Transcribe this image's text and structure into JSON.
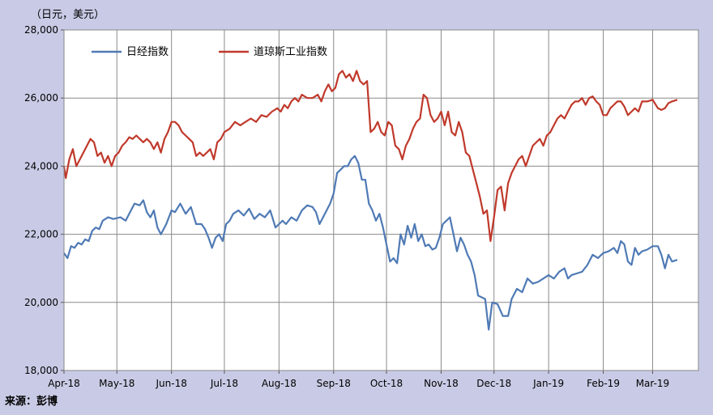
{
  "chart_data": {
    "type": "line",
    "unit_label": "（日元，美元）",
    "source": "来源：彭博",
    "ylim": [
      18000,
      28000
    ],
    "yticks": [
      18000,
      20000,
      22000,
      24000,
      26000,
      28000
    ],
    "ytick_labels": [
      "18,000",
      "20,000",
      "22,000",
      "24,000",
      "26,000",
      "28,000"
    ],
    "xlim": [
      0,
      360
    ],
    "months": [
      "Apr-18",
      "May-18",
      "Jun-18",
      "Jul-18",
      "Aug-18",
      "Sep-18",
      "Oct-18",
      "Nov-18",
      "Dec-18",
      "Jan-19",
      "Feb-19",
      "Mar-19"
    ],
    "month_start_day": [
      0,
      30,
      61,
      91,
      122,
      153,
      183,
      214,
      244,
      275,
      306,
      334
    ],
    "grid": true,
    "legend_position": "top-left",
    "colors": {
      "nikkei": "#4f7ab5",
      "dow": "#c0392b"
    },
    "series": [
      {
        "name": "日经指数",
        "color": "#4f7ab5",
        "points": [
          [
            0,
            21450
          ],
          [
            2,
            21300
          ],
          [
            4,
            21650
          ],
          [
            6,
            21600
          ],
          [
            8,
            21750
          ],
          [
            10,
            21700
          ],
          [
            12,
            21850
          ],
          [
            14,
            21800
          ],
          [
            16,
            22100
          ],
          [
            18,
            22200
          ],
          [
            20,
            22150
          ],
          [
            22,
            22400
          ],
          [
            25,
            22500
          ],
          [
            28,
            22450
          ],
          [
            32,
            22500
          ],
          [
            35,
            22400
          ],
          [
            37,
            22600
          ],
          [
            40,
            22900
          ],
          [
            43,
            22850
          ],
          [
            45,
            23000
          ],
          [
            47,
            22650
          ],
          [
            49,
            22500
          ],
          [
            51,
            22700
          ],
          [
            53,
            22200
          ],
          [
            55,
            22000
          ],
          [
            58,
            22300
          ],
          [
            61,
            22700
          ],
          [
            63,
            22650
          ],
          [
            66,
            22900
          ],
          [
            69,
            22600
          ],
          [
            72,
            22800
          ],
          [
            75,
            22300
          ],
          [
            78,
            22300
          ],
          [
            80,
            22150
          ],
          [
            82,
            21900
          ],
          [
            84,
            21600
          ],
          [
            86,
            21900
          ],
          [
            88,
            22000
          ],
          [
            90,
            21800
          ],
          [
            92,
            22300
          ],
          [
            94,
            22400
          ],
          [
            96,
            22600
          ],
          [
            99,
            22700
          ],
          [
            102,
            22550
          ],
          [
            105,
            22750
          ],
          [
            108,
            22450
          ],
          [
            111,
            22600
          ],
          [
            114,
            22500
          ],
          [
            117,
            22700
          ],
          [
            120,
            22200
          ],
          [
            122,
            22300
          ],
          [
            124,
            22400
          ],
          [
            126,
            22300
          ],
          [
            129,
            22500
          ],
          [
            132,
            22400
          ],
          [
            135,
            22700
          ],
          [
            138,
            22850
          ],
          [
            141,
            22800
          ],
          [
            143,
            22650
          ],
          [
            145,
            22300
          ],
          [
            147,
            22500
          ],
          [
            149,
            22700
          ],
          [
            151,
            22900
          ],
          [
            153,
            23200
          ],
          [
            155,
            23800
          ],
          [
            157,
            23900
          ],
          [
            159,
            24000
          ],
          [
            161,
            24000
          ],
          [
            163,
            24200
          ],
          [
            165,
            24300
          ],
          [
            167,
            24100
          ],
          [
            169,
            23600
          ],
          [
            171,
            23600
          ],
          [
            173,
            22900
          ],
          [
            175,
            22700
          ],
          [
            177,
            22400
          ],
          [
            179,
            22600
          ],
          [
            181,
            22200
          ],
          [
            183,
            21700
          ],
          [
            185,
            21200
          ],
          [
            187,
            21300
          ],
          [
            189,
            21150
          ],
          [
            191,
            22000
          ],
          [
            193,
            21700
          ],
          [
            195,
            22250
          ],
          [
            197,
            21900
          ],
          [
            199,
            22300
          ],
          [
            201,
            21800
          ],
          [
            203,
            22000
          ],
          [
            205,
            21650
          ],
          [
            207,
            21700
          ],
          [
            209,
            21550
          ],
          [
            211,
            21600
          ],
          [
            213,
            21900
          ],
          [
            215,
            22300
          ],
          [
            217,
            22400
          ],
          [
            219,
            22500
          ],
          [
            221,
            22000
          ],
          [
            223,
            21500
          ],
          [
            225,
            21900
          ],
          [
            227,
            21700
          ],
          [
            229,
            21400
          ],
          [
            231,
            21200
          ],
          [
            233,
            20800
          ],
          [
            235,
            20200
          ],
          [
            237,
            20150
          ],
          [
            239,
            20100
          ],
          [
            241,
            19200
          ],
          [
            243,
            20000
          ],
          [
            246,
            19950
          ],
          [
            249,
            19600
          ],
          [
            252,
            19600
          ],
          [
            254,
            20100
          ],
          [
            257,
            20400
          ],
          [
            260,
            20300
          ],
          [
            263,
            20700
          ],
          [
            266,
            20550
          ],
          [
            269,
            20600
          ],
          [
            272,
            20700
          ],
          [
            275,
            20800
          ],
          [
            278,
            20700
          ],
          [
            281,
            20900
          ],
          [
            284,
            21000
          ],
          [
            286,
            20700
          ],
          [
            288,
            20800
          ],
          [
            291,
            20850
          ],
          [
            294,
            20900
          ],
          [
            297,
            21100
          ],
          [
            300,
            21400
          ],
          [
            303,
            21300
          ],
          [
            306,
            21450
          ],
          [
            309,
            21500
          ],
          [
            312,
            21600
          ],
          [
            314,
            21450
          ],
          [
            316,
            21800
          ],
          [
            318,
            21700
          ],
          [
            320,
            21200
          ],
          [
            322,
            21100
          ],
          [
            324,
            21600
          ],
          [
            326,
            21400
          ],
          [
            328,
            21500
          ],
          [
            331,
            21550
          ],
          [
            334,
            21650
          ],
          [
            337,
            21650
          ],
          [
            339,
            21400
          ],
          [
            341,
            21000
          ],
          [
            343,
            21400
          ],
          [
            345,
            21200
          ],
          [
            348,
            21250
          ]
        ]
      },
      {
        "name": "道琼斯工业指数",
        "color": "#c0392b",
        "points": [
          [
            0,
            24000
          ],
          [
            1,
            23650
          ],
          [
            3,
            24200
          ],
          [
            5,
            24500
          ],
          [
            7,
            24000
          ],
          [
            10,
            24300
          ],
          [
            13,
            24600
          ],
          [
            15,
            24800
          ],
          [
            17,
            24700
          ],
          [
            19,
            24300
          ],
          [
            21,
            24400
          ],
          [
            23,
            24100
          ],
          [
            25,
            24300
          ],
          [
            27,
            24000
          ],
          [
            29,
            24300
          ],
          [
            31,
            24400
          ],
          [
            33,
            24600
          ],
          [
            35,
            24700
          ],
          [
            37,
            24850
          ],
          [
            39,
            24800
          ],
          [
            41,
            24900
          ],
          [
            43,
            24800
          ],
          [
            45,
            24700
          ],
          [
            47,
            24800
          ],
          [
            49,
            24700
          ],
          [
            51,
            24500
          ],
          [
            53,
            24700
          ],
          [
            55,
            24400
          ],
          [
            57,
            24800
          ],
          [
            59,
            25000
          ],
          [
            61,
            25300
          ],
          [
            63,
            25300
          ],
          [
            65,
            25200
          ],
          [
            67,
            25000
          ],
          [
            69,
            24900
          ],
          [
            71,
            24800
          ],
          [
            73,
            24700
          ],
          [
            75,
            24300
          ],
          [
            77,
            24400
          ],
          [
            79,
            24300
          ],
          [
            81,
            24400
          ],
          [
            83,
            24500
          ],
          [
            85,
            24200
          ],
          [
            87,
            24700
          ],
          [
            89,
            24800
          ],
          [
            91,
            25000
          ],
          [
            94,
            25100
          ],
          [
            97,
            25300
          ],
          [
            100,
            25200
          ],
          [
            103,
            25300
          ],
          [
            106,
            25400
          ],
          [
            109,
            25300
          ],
          [
            112,
            25500
          ],
          [
            115,
            25450
          ],
          [
            118,
            25600
          ],
          [
            121,
            25700
          ],
          [
            123,
            25600
          ],
          [
            125,
            25800
          ],
          [
            127,
            25700
          ],
          [
            129,
            25900
          ],
          [
            131,
            26000
          ],
          [
            133,
            25900
          ],
          [
            135,
            26100
          ],
          [
            138,
            26000
          ],
          [
            141,
            26000
          ],
          [
            144,
            26100
          ],
          [
            146,
            25900
          ],
          [
            148,
            26200
          ],
          [
            150,
            26400
          ],
          [
            152,
            26200
          ],
          [
            154,
            26300
          ],
          [
            156,
            26700
          ],
          [
            158,
            26800
          ],
          [
            160,
            26600
          ],
          [
            162,
            26700
          ],
          [
            164,
            26500
          ],
          [
            166,
            26800
          ],
          [
            168,
            26500
          ],
          [
            170,
            26400
          ],
          [
            172,
            26500
          ],
          [
            174,
            25000
          ],
          [
            176,
            25100
          ],
          [
            178,
            25300
          ],
          [
            180,
            25000
          ],
          [
            182,
            24900
          ],
          [
            184,
            25300
          ],
          [
            186,
            25200
          ],
          [
            188,
            24600
          ],
          [
            190,
            24500
          ],
          [
            192,
            24200
          ],
          [
            194,
            24600
          ],
          [
            196,
            24800
          ],
          [
            198,
            25100
          ],
          [
            200,
            25300
          ],
          [
            202,
            25400
          ],
          [
            204,
            26100
          ],
          [
            206,
            26000
          ],
          [
            208,
            25500
          ],
          [
            210,
            25300
          ],
          [
            212,
            25400
          ],
          [
            214,
            25600
          ],
          [
            216,
            25200
          ],
          [
            218,
            25600
          ],
          [
            220,
            25000
          ],
          [
            222,
            24900
          ],
          [
            224,
            25300
          ],
          [
            226,
            25000
          ],
          [
            228,
            24400
          ],
          [
            230,
            24300
          ],
          [
            232,
            23900
          ],
          [
            234,
            23500
          ],
          [
            236,
            23100
          ],
          [
            238,
            22600
          ],
          [
            240,
            22700
          ],
          [
            242,
            21800
          ],
          [
            244,
            22500
          ],
          [
            246,
            23300
          ],
          [
            248,
            23400
          ],
          [
            250,
            22700
          ],
          [
            252,
            23500
          ],
          [
            254,
            23800
          ],
          [
            256,
            24000
          ],
          [
            258,
            24200
          ],
          [
            260,
            24300
          ],
          [
            262,
            24000
          ],
          [
            264,
            24300
          ],
          [
            266,
            24600
          ],
          [
            268,
            24700
          ],
          [
            270,
            24800
          ],
          [
            272,
            24600
          ],
          [
            274,
            24900
          ],
          [
            276,
            25000
          ],
          [
            278,
            25200
          ],
          [
            280,
            25400
          ],
          [
            282,
            25500
          ],
          [
            284,
            25400
          ],
          [
            286,
            25600
          ],
          [
            288,
            25800
          ],
          [
            290,
            25900
          ],
          [
            292,
            25900
          ],
          [
            294,
            26000
          ],
          [
            296,
            25800
          ],
          [
            298,
            26000
          ],
          [
            300,
            26050
          ],
          [
            302,
            25900
          ],
          [
            304,
            25800
          ],
          [
            306,
            25500
          ],
          [
            308,
            25500
          ],
          [
            310,
            25700
          ],
          [
            312,
            25800
          ],
          [
            314,
            25900
          ],
          [
            316,
            25900
          ],
          [
            318,
            25750
          ],
          [
            320,
            25500
          ],
          [
            322,
            25600
          ],
          [
            324,
            25700
          ],
          [
            326,
            25600
          ],
          [
            328,
            25900
          ],
          [
            331,
            25900
          ],
          [
            334,
            25950
          ],
          [
            337,
            25700
          ],
          [
            339,
            25650
          ],
          [
            341,
            25700
          ],
          [
            343,
            25850
          ],
          [
            345,
            25900
          ],
          [
            348,
            25950
          ]
        ]
      }
    ]
  }
}
